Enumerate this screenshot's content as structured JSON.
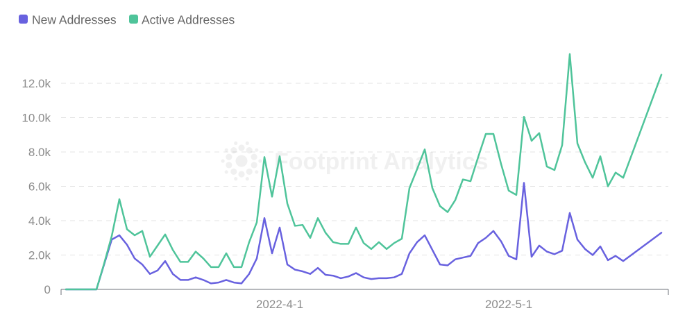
{
  "watermark": {
    "text": "Footprint Analytics",
    "icon": "footprint-logo-icon"
  },
  "chart_data": {
    "type": "line",
    "x": [
      "2022-03-04",
      "2022-03-05",
      "2022-03-06",
      "2022-03-07",
      "2022-03-08",
      "2022-03-09",
      "2022-03-10",
      "2022-03-11",
      "2022-03-12",
      "2022-03-13",
      "2022-03-14",
      "2022-03-15",
      "2022-03-16",
      "2022-03-17",
      "2022-03-18",
      "2022-03-19",
      "2022-03-20",
      "2022-03-21",
      "2022-03-22",
      "2022-03-23",
      "2022-03-24",
      "2022-03-25",
      "2022-03-26",
      "2022-03-27",
      "2022-03-28",
      "2022-03-29",
      "2022-03-30",
      "2022-03-31",
      "2022-04-01",
      "2022-04-02",
      "2022-04-03",
      "2022-04-04",
      "2022-04-05",
      "2022-04-06",
      "2022-04-07",
      "2022-04-08",
      "2022-04-09",
      "2022-04-10",
      "2022-04-11",
      "2022-04-12",
      "2022-04-13",
      "2022-04-14",
      "2022-04-15",
      "2022-04-16",
      "2022-04-17",
      "2022-04-18",
      "2022-04-19",
      "2022-04-20",
      "2022-04-21",
      "2022-04-22",
      "2022-04-23",
      "2022-04-24",
      "2022-04-25",
      "2022-04-26",
      "2022-04-27",
      "2022-04-28",
      "2022-04-29",
      "2022-04-30",
      "2022-05-01",
      "2022-05-02",
      "2022-05-03",
      "2022-05-04",
      "2022-05-05",
      "2022-05-06",
      "2022-05-07",
      "2022-05-08",
      "2022-05-09",
      "2022-05-10",
      "2022-05-11",
      "2022-05-12",
      "2022-05-13",
      "2022-05-14",
      "2022-05-15",
      "2022-05-16",
      "2022-05-21"
    ],
    "series": [
      {
        "name": "New Addresses",
        "color": "#6861df",
        "values": [
          0,
          0,
          0,
          0,
          0,
          1450,
          2900,
          3150,
          2600,
          1800,
          1450,
          900,
          1100,
          1650,
          900,
          550,
          550,
          700,
          550,
          350,
          400,
          550,
          400,
          350,
          900,
          1800,
          4150,
          2100,
          3600,
          1450,
          1150,
          1050,
          900,
          1250,
          850,
          800,
          650,
          750,
          950,
          700,
          600,
          650,
          650,
          700,
          900,
          2100,
          2750,
          3150,
          2300,
          1450,
          1400,
          1750,
          1850,
          1950,
          2700,
          3000,
          3400,
          2800,
          1950,
          1750,
          6200,
          1900,
          2550,
          2200,
          2050,
          2250,
          4450,
          2900,
          2350,
          2000,
          2500,
          1700,
          1950,
          1650,
          3300
        ]
      },
      {
        "name": "Active Addresses",
        "color": "#4fc49a",
        "values": [
          0,
          0,
          0,
          0,
          0,
          1500,
          3100,
          5250,
          3500,
          3150,
          3400,
          1900,
          2550,
          3200,
          2300,
          1600,
          1600,
          2200,
          1800,
          1300,
          1300,
          2100,
          1300,
          1300,
          2750,
          3900,
          7700,
          5400,
          7750,
          5000,
          3700,
          3750,
          3000,
          4150,
          3300,
          2750,
          2650,
          2650,
          3600,
          2700,
          2350,
          2750,
          2350,
          2700,
          2950,
          5900,
          7000,
          8150,
          5900,
          4850,
          4500,
          5200,
          6400,
          6300,
          7700,
          9050,
          9050,
          7300,
          5750,
          5500,
          10050,
          8650,
          9100,
          7150,
          6950,
          8400,
          13700,
          8500,
          7400,
          6500,
          7750,
          6000,
          6800,
          6500,
          12500
        ]
      }
    ],
    "xlim": [
      "2022-03-04",
      "2022-05-21"
    ],
    "ylim": [
      0,
      14000
    ],
    "x_ticks": [
      {
        "date": "2022-04-01",
        "label": "2022-4-1"
      },
      {
        "date": "2022-05-01",
        "label": "2022-5-1"
      }
    ],
    "y_ticks": [
      {
        "value": 0,
        "label": "0"
      },
      {
        "value": 2000,
        "label": "2.0k"
      },
      {
        "value": 4000,
        "label": "4.0k"
      },
      {
        "value": 6000,
        "label": "6.0k"
      },
      {
        "value": 8000,
        "label": "8.0k"
      },
      {
        "value": 10000,
        "label": "10.0k"
      },
      {
        "value": 12000,
        "label": "12.0k"
      }
    ],
    "grid": true,
    "legend": "top-left"
  }
}
